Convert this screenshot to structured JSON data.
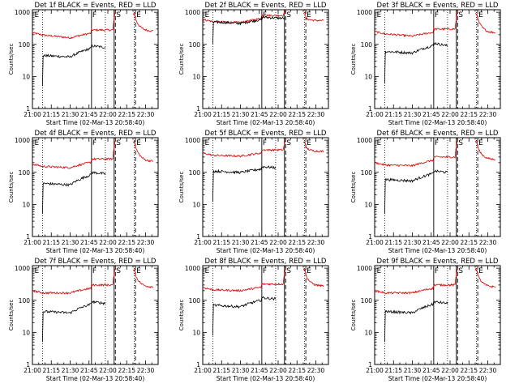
{
  "chart_data": {
    "type": "line",
    "layout": "3x3 grid of log-scale time series",
    "x_tick_labels": [
      "21:00",
      "21:15",
      "21:30",
      "21:45",
      "22:00",
      "22:15",
      "22:30"
    ],
    "x_tick_minutes": [
      0,
      15,
      30,
      45,
      60,
      75,
      90
    ],
    "xlim_minutes": [
      0,
      100
    ],
    "ylim": [
      1,
      1200
    ],
    "yscale": "log",
    "y_tick_labels": [
      "1",
      "10",
      "100",
      "1000"
    ],
    "y_tick_values": [
      1,
      10,
      100,
      1000
    ],
    "ylabel": "Counts/sec",
    "xlabel": "Start Time (02-Mar-13 20:58:40)",
    "colors": {
      "events": "#000000",
      "lld": "#dd0000",
      "axes": "#000000"
    },
    "markers": [
      {
        "label": "E",
        "minute": 1
      },
      {
        "label": "F",
        "minute": 47
      },
      {
        "label": "S",
        "minute": 66
      },
      {
        "label": "E",
        "minute": 82
      }
    ],
    "vertical_lines": {
      "dotted": [
        8,
        58,
        81
      ],
      "solid": [
        47,
        65
      ],
      "dashed": [
        66,
        82
      ]
    },
    "panels": [
      {
        "title": "Det 1f BLACK = Events, RED = LLD",
        "events": {
          "start": 8,
          "stop": 58,
          "base": 45,
          "step_at": 47,
          "step_level": 90,
          "end_level": 80,
          "spike_start": 5
        },
        "lld": {
          "base": 230,
          "dip_level": 160,
          "step_at": 47,
          "step_level": 280,
          "peak": 1000,
          "tail_level": 260
        }
      },
      {
        "title": "Det 2f BLACK = Events, RED = LLD",
        "events": {
          "start": 8,
          "stop": 65,
          "base": 500,
          "step_at": 47,
          "step_level": 700,
          "end_level": 650,
          "spike_start": 100
        },
        "lld": {
          "base": 600,
          "dip_level": 480,
          "step_at": 47,
          "step_level": 800,
          "peak": 1100,
          "tail_level": 550
        }
      },
      {
        "title": "Det 3f BLACK = Events, RED = LLD",
        "events": {
          "start": 8,
          "stop": 58,
          "base": 60,
          "step_at": 47,
          "step_level": 110,
          "end_level": 90,
          "spike_start": 6
        },
        "lld": {
          "base": 250,
          "dip_level": 180,
          "step_at": 47,
          "step_level": 300,
          "peak": 1000,
          "tail_level": 230
        }
      },
      {
        "title": "Det 4f BLACK = Events, RED = LLD",
        "events": {
          "start": 8,
          "stop": 58,
          "base": 45,
          "step_at": 47,
          "step_level": 100,
          "end_level": 90,
          "spike_start": 5
        },
        "lld": {
          "base": 180,
          "dip_level": 140,
          "step_at": 47,
          "step_level": 260,
          "peak": 1000,
          "tail_level": 220
        }
      },
      {
        "title": "Det 5f BLACK = Events, RED = LLD",
        "events": {
          "start": 8,
          "stop": 58,
          "base": 110,
          "step_at": 47,
          "step_level": 150,
          "end_level": 140,
          "spike_start": 12
        },
        "lld": {
          "base": 400,
          "dip_level": 320,
          "step_at": 47,
          "step_level": 500,
          "peak": 1000,
          "tail_level": 450
        }
      },
      {
        "title": "Det 6f BLACK = Events, RED = LLD",
        "events": {
          "start": 8,
          "stop": 58,
          "base": 60,
          "step_at": 47,
          "step_level": 110,
          "end_level": 100,
          "spike_start": 5
        },
        "lld": {
          "base": 200,
          "dip_level": 160,
          "step_at": 47,
          "step_level": 300,
          "peak": 1000,
          "tail_level": 250
        }
      },
      {
        "title": "Det 7f BLACK = Events, RED = LLD",
        "events": {
          "start": 8,
          "stop": 58,
          "base": 45,
          "step_at": 47,
          "step_level": 90,
          "end_level": 80,
          "spike_start": 5
        },
        "lld": {
          "base": 200,
          "dip_level": 170,
          "step_at": 47,
          "step_level": 300,
          "peak": 1000,
          "tail_level": 260
        }
      },
      {
        "title": "Det 8f BLACK = Events, RED = LLD",
        "events": {
          "start": 8,
          "stop": 58,
          "base": 70,
          "step_at": 47,
          "step_level": 120,
          "end_level": 110,
          "spike_start": 8
        },
        "lld": {
          "base": 250,
          "dip_level": 200,
          "step_at": 47,
          "step_level": 320,
          "peak": 1000,
          "tail_level": 280
        }
      },
      {
        "title": "Det 9f BLACK = Events, RED = LLD",
        "events": {
          "start": 8,
          "stop": 58,
          "base": 45,
          "step_at": 47,
          "step_level": 90,
          "end_level": 80,
          "spike_start": 5
        },
        "lld": {
          "base": 200,
          "dip_level": 170,
          "step_at": 47,
          "step_level": 300,
          "peak": 1000,
          "tail_level": 260
        }
      }
    ]
  }
}
